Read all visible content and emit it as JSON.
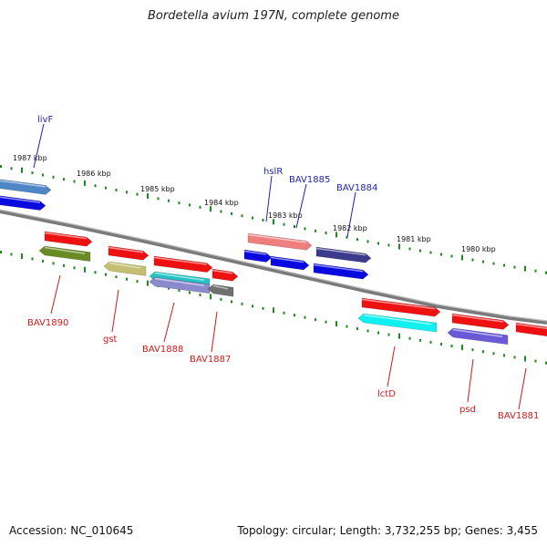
{
  "title": "Bordetella avium 197N, complete genome",
  "footer": {
    "accession": "Accession: NC_010645",
    "summary": "Topology: circular; Length: 3,732,255 bp; Genes: 3,455"
  },
  "colors": {
    "backbone": "#808080",
    "tick": "#1f8a1f",
    "label_top": "#1f1fb0",
    "label_bottom": "#d11a1a"
  },
  "kbp_ticks": [
    "1987 kbp",
    "1986 kbp",
    "1985 kbp",
    "1984 kbp",
    "1983 kbp",
    "1982 kbp",
    "1981 kbp",
    "1980 kbp"
  ],
  "genes": {
    "top": [
      "livF",
      "hslR",
      "BAV1885",
      "BAV1884"
    ],
    "bottom": [
      "BAV1890",
      "gst",
      "BAV1888",
      "BAV1887",
      "lctD",
      "psd",
      "BAV1881"
    ]
  }
}
